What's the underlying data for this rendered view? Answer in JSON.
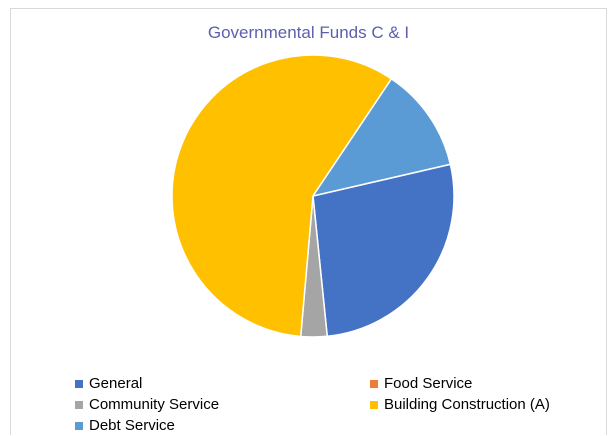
{
  "chart_data": {
    "type": "pie",
    "title": "Governmental Funds C & I",
    "categories": [
      "General",
      "Food Service",
      "Community Service",
      "Building Construction (A)",
      "Debt Service"
    ],
    "values": [
      27.0,
      0.0,
      3.0,
      58.0,
      12.0
    ],
    "unit": "percent of total (estimated)",
    "colors": [
      "#4472c4",
      "#ed7d31",
      "#a5a5a5",
      "#ffc000",
      "#5b9bd5"
    ],
    "legend_position": "bottom",
    "start_angle_deg": 77,
    "direction": "clockwise"
  }
}
